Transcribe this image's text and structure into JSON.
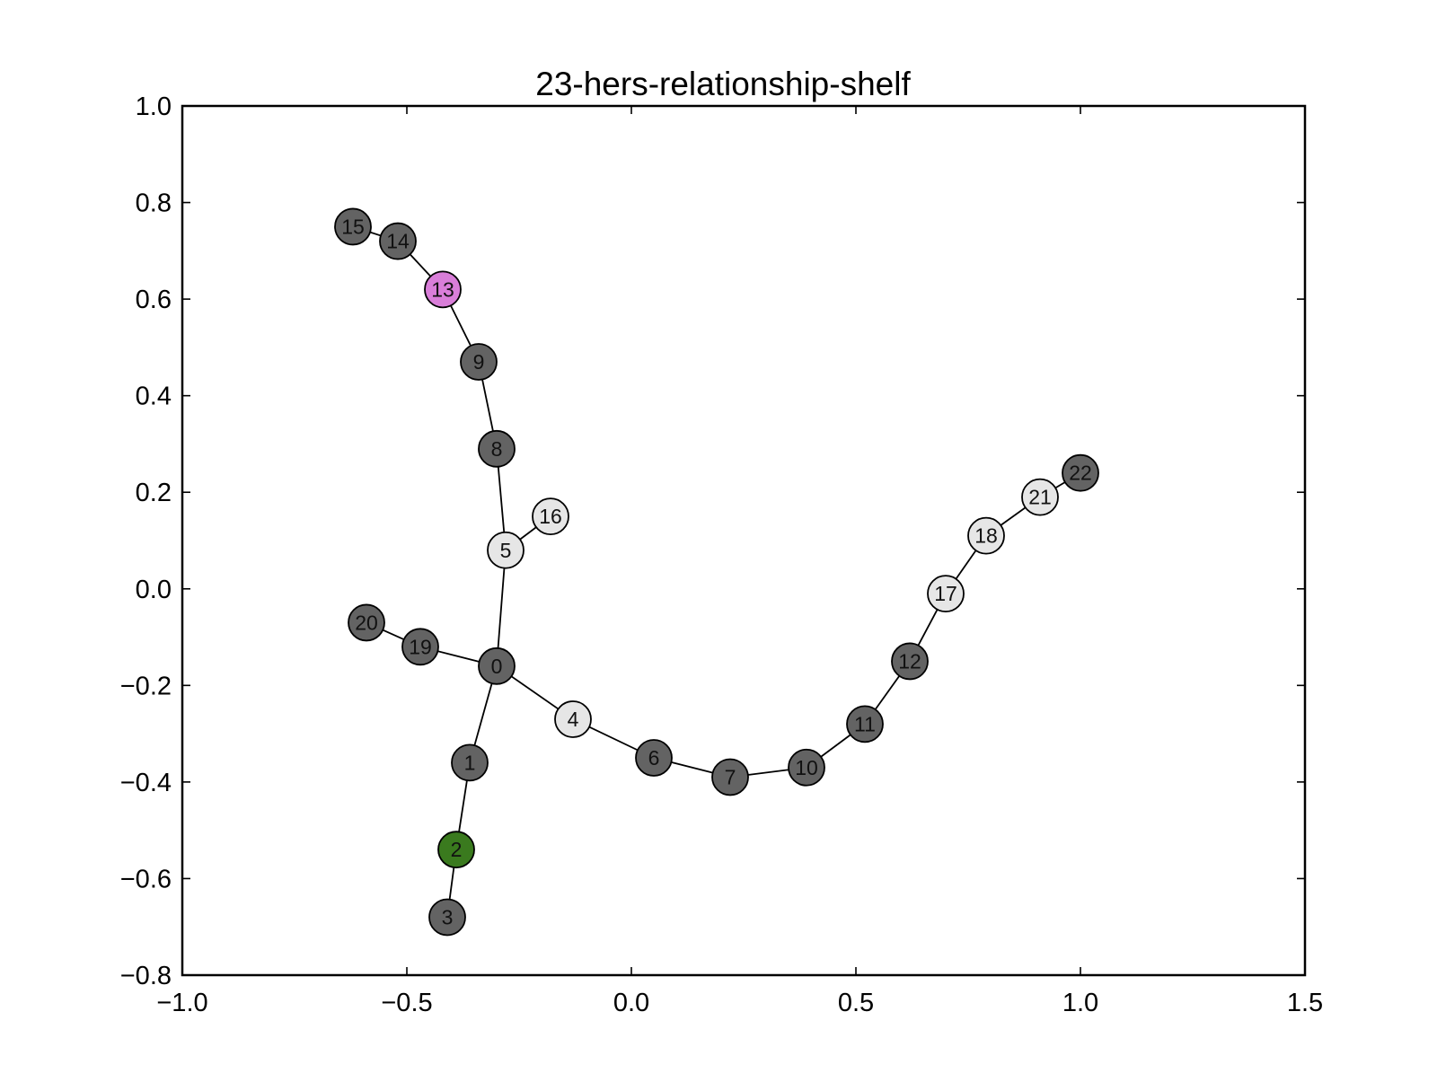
{
  "chart_data": {
    "type": "scatter",
    "title": "23-hers-relationship-shelf",
    "xlabel": "",
    "ylabel": "",
    "xlim": [
      -1.0,
      1.5
    ],
    "ylim": [
      -0.8,
      1.0
    ],
    "xticks": [
      "−1.0",
      "−0.5",
      "0.0",
      "0.5",
      "1.0",
      "1.5"
    ],
    "xtick_values": [
      -1.0,
      -0.5,
      0.0,
      0.5,
      1.0,
      1.5
    ],
    "yticks": [
      "1.0",
      "0.8",
      "0.6",
      "0.4",
      "0.2",
      "0.0",
      "−0.2",
      "−0.4",
      "−0.6",
      "−0.8"
    ],
    "ytick_values": [
      1.0,
      0.8,
      0.6,
      0.4,
      0.2,
      0.0,
      -0.2,
      -0.4,
      -0.6,
      -0.8
    ],
    "grid": false,
    "colors": {
      "dark": "#636363",
      "light": "#e6e6e6",
      "green": "#3a7a1e",
      "magenta": "#d97ed9",
      "edge": "#000000"
    },
    "nodes": [
      {
        "id": "0",
        "x": -0.3,
        "y": -0.16,
        "color": "dark"
      },
      {
        "id": "1",
        "x": -0.36,
        "y": -0.36,
        "color": "dark"
      },
      {
        "id": "2",
        "x": -0.39,
        "y": -0.54,
        "color": "green"
      },
      {
        "id": "3",
        "x": -0.41,
        "y": -0.68,
        "color": "dark"
      },
      {
        "id": "4",
        "x": -0.13,
        "y": -0.27,
        "color": "light"
      },
      {
        "id": "5",
        "x": -0.28,
        "y": 0.08,
        "color": "light"
      },
      {
        "id": "6",
        "x": 0.05,
        "y": -0.35,
        "color": "dark"
      },
      {
        "id": "7",
        "x": 0.22,
        "y": -0.39,
        "color": "dark"
      },
      {
        "id": "8",
        "x": -0.3,
        "y": 0.29,
        "color": "dark"
      },
      {
        "id": "9",
        "x": -0.34,
        "y": 0.47,
        "color": "dark"
      },
      {
        "id": "10",
        "x": 0.39,
        "y": -0.37,
        "color": "dark"
      },
      {
        "id": "11",
        "x": 0.52,
        "y": -0.28,
        "color": "dark"
      },
      {
        "id": "12",
        "x": 0.62,
        "y": -0.15,
        "color": "dark"
      },
      {
        "id": "13",
        "x": -0.42,
        "y": 0.62,
        "color": "magenta"
      },
      {
        "id": "14",
        "x": -0.52,
        "y": 0.72,
        "color": "dark"
      },
      {
        "id": "15",
        "x": -0.62,
        "y": 0.75,
        "color": "dark"
      },
      {
        "id": "16",
        "x": -0.18,
        "y": 0.15,
        "color": "light"
      },
      {
        "id": "17",
        "x": 0.7,
        "y": -0.01,
        "color": "light"
      },
      {
        "id": "18",
        "x": 0.79,
        "y": 0.11,
        "color": "light"
      },
      {
        "id": "19",
        "x": -0.47,
        "y": -0.12,
        "color": "dark"
      },
      {
        "id": "20",
        "x": -0.59,
        "y": -0.07,
        "color": "dark"
      },
      {
        "id": "21",
        "x": 0.91,
        "y": 0.19,
        "color": "light"
      },
      {
        "id": "22",
        "x": 1.0,
        "y": 0.24,
        "color": "dark"
      }
    ],
    "edges": [
      [
        "0",
        "1"
      ],
      [
        "1",
        "2"
      ],
      [
        "2",
        "3"
      ],
      [
        "0",
        "5"
      ],
      [
        "5",
        "8"
      ],
      [
        "8",
        "9"
      ],
      [
        "9",
        "13"
      ],
      [
        "13",
        "14"
      ],
      [
        "14",
        "15"
      ],
      [
        "5",
        "16"
      ],
      [
        "0",
        "19"
      ],
      [
        "19",
        "20"
      ],
      [
        "0",
        "4"
      ],
      [
        "4",
        "6"
      ],
      [
        "6",
        "7"
      ],
      [
        "7",
        "10"
      ],
      [
        "10",
        "11"
      ],
      [
        "11",
        "12"
      ],
      [
        "12",
        "17"
      ],
      [
        "17",
        "18"
      ],
      [
        "18",
        "21"
      ],
      [
        "21",
        "22"
      ]
    ]
  }
}
